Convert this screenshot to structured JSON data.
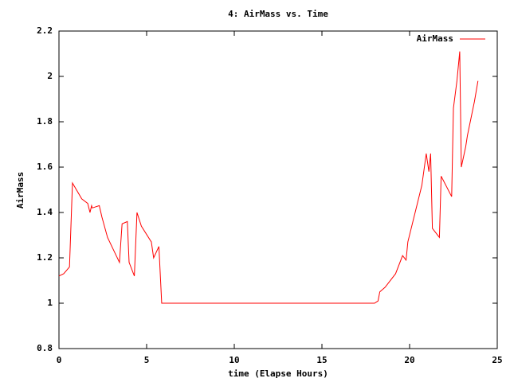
{
  "chart_data": {
    "type": "line",
    "title": "4: AirMass vs. Time",
    "x_label": "time (Elapse Hours)",
    "y_label": "AirMass",
    "x": [
      0,
      0.27,
      0.6,
      0.77,
      1.3,
      1.64,
      1.77,
      1.86,
      1.9,
      2.3,
      2.45,
      2.77,
      3.45,
      3.6,
      3.9,
      4.0,
      4.3,
      4.45,
      4.7,
      5.27,
      5.4,
      5.7,
      5.86,
      18.0,
      18.2,
      18.3,
      18.6,
      19.2,
      19.6,
      19.8,
      19.9,
      20.7,
      20.95,
      21.1,
      21.2,
      21.3,
      21.7,
      21.8,
      22.4,
      22.5,
      22.7,
      22.86,
      22.95,
      23.2,
      23.3,
      23.7,
      23.9
    ],
    "series": [
      {
        "name": "AirMass",
        "color": "#ff0000",
        "values": [
          1.12,
          1.13,
          1.16,
          1.53,
          1.46,
          1.44,
          1.4,
          1.43,
          1.42,
          1.43,
          1.38,
          1.29,
          1.18,
          1.35,
          1.36,
          1.18,
          1.12,
          1.4,
          1.34,
          1.27,
          1.2,
          1.25,
          1.0,
          1.0,
          1.01,
          1.05,
          1.07,
          1.13,
          1.21,
          1.19,
          1.27,
          1.52,
          1.66,
          1.58,
          1.66,
          1.33,
          1.29,
          1.56,
          1.47,
          1.86,
          1.98,
          2.11,
          1.6,
          1.69,
          1.74,
          1.89,
          1.98
        ]
      }
    ],
    "xlim": [
      0,
      25
    ],
    "xticks": [
      0,
      5,
      10,
      15,
      20,
      25
    ],
    "ylim": [
      0.8,
      2.2
    ],
    "yticks": [
      0.8,
      1,
      1.2,
      1.4,
      1.6,
      1.8,
      2,
      2.2
    ],
    "legend": "top right"
  }
}
